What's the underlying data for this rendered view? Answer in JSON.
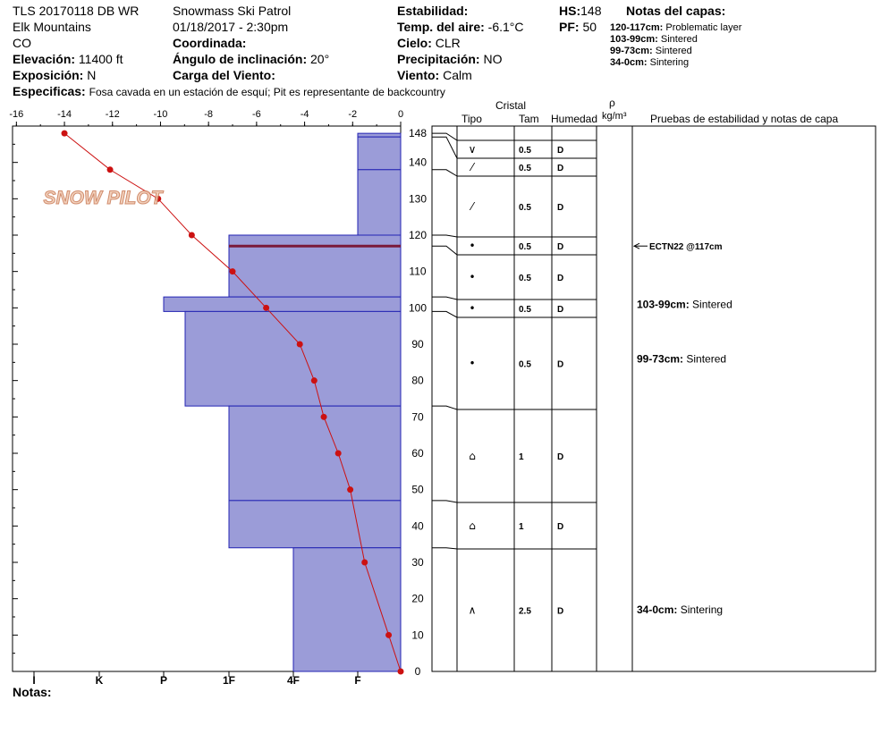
{
  "header": {
    "id": "TLS 20170118 DB WR",
    "range": "Elk Mountains",
    "state": "CO",
    "elevation_label": "Elevación:",
    "elevation_value": "11400 ft",
    "aspect_label": "Exposición:",
    "aspect_value": "N",
    "specifics_label": "Especificas:",
    "specifics_value": "Fosa cavada en un estación de esquí; Pit es representante de backcountry",
    "org": "Snowmass Ski Patrol",
    "datetime": "01/18/2017 - 2:30pm",
    "coord_label": "Coordinada:",
    "slope_label": "Ángulo de inclinación:",
    "slope_value": "20°",
    "wind_load_label": "Carga del Viento:",
    "stability_label": "Estabilidad:",
    "air_temp_label": "Temp. del aire:",
    "air_temp_value": "-6.1°C",
    "sky_label": "Cielo:",
    "sky_value": "CLR",
    "precip_label": "Precipitación:",
    "precip_value": "NO",
    "wind_label": "Viento:",
    "wind_value": "Calm",
    "hs_label": "HS:",
    "hs_value": "148",
    "pf_label": "PF:",
    "pf_value": "50",
    "layer_notes_title": "Notas del capas:",
    "layer_notes": [
      {
        "range": "120-117cm:",
        "text": "Problematic layer"
      },
      {
        "range": "103-99cm:",
        "text": "Sintered"
      },
      {
        "range": "99-73cm:",
        "text": "Sintered"
      },
      {
        "range": "34-0cm:",
        "text": "Sintering"
      }
    ],
    "notes_label": "Notas:"
  },
  "logo": {
    "text": "SNOW PILOT"
  },
  "table": {
    "crystal_header": "Cristal",
    "type_header": "Tipo",
    "size_header": "Tam",
    "moisture_header": "Humedad",
    "rho_header": "ρ",
    "density_header": "kg/m³",
    "tests_header": "Pruebas de estabilidad y notas de capa"
  },
  "chart_data": {
    "type": "snow_profile",
    "x_ticks": [
      "-16",
      "-14",
      "-12",
      "-10",
      "-8",
      "-6",
      "-4",
      "-2",
      "0"
    ],
    "x_range": [
      -16,
      0
    ],
    "y_range": [
      0,
      150
    ],
    "y_ticks": [
      "0",
      "10",
      "20",
      "30",
      "40",
      "50",
      "60",
      "70",
      "80",
      "90",
      "100",
      "110",
      "120",
      "130",
      "140",
      "148"
    ],
    "hardness_labels": [
      "I",
      "K",
      "P",
      "1F",
      "4F",
      "F"
    ],
    "temperature_series": [
      {
        "h": 148,
        "t": -14.0
      },
      {
        "h": 138,
        "t": -12.1
      },
      {
        "h": 130,
        "t": -10.1
      },
      {
        "h": 120,
        "t": -8.7
      },
      {
        "h": 110,
        "t": -7.0
      },
      {
        "h": 100,
        "t": -5.6
      },
      {
        "h": 90,
        "t": -4.2
      },
      {
        "h": 80,
        "t": -3.6
      },
      {
        "h": 70,
        "t": -3.2
      },
      {
        "h": 60,
        "t": -2.6
      },
      {
        "h": 50,
        "t": -2.1
      },
      {
        "h": 30,
        "t": -1.5
      },
      {
        "h": 10,
        "t": -0.5
      },
      {
        "h": 0,
        "t": 0.0
      }
    ],
    "hardness_layers": [
      {
        "top": 148,
        "bottom": 147,
        "hardness": "4F-"
      },
      {
        "top": 147,
        "bottom": 138,
        "hardness": "4F-"
      },
      {
        "top": 138,
        "bottom": 120,
        "hardness": "4F-"
      },
      {
        "top": 120,
        "bottom": 117,
        "hardness": "1F"
      },
      {
        "top": 117,
        "bottom": 103,
        "hardness": "1F"
      },
      {
        "top": 103,
        "bottom": 99,
        "hardness": "P+"
      },
      {
        "top": 99,
        "bottom": 73,
        "hardness": "P-"
      },
      {
        "top": 73,
        "bottom": 47,
        "hardness": "1F"
      },
      {
        "top": 47,
        "bottom": 34,
        "hardness": "1F"
      },
      {
        "top": 34,
        "bottom": 0,
        "hardness": "4F"
      }
    ],
    "layer_rows": [
      {
        "type": "∨",
        "size": "0.5",
        "moisture": "D"
      },
      {
        "type": "⁄",
        "size": "0.5",
        "moisture": "D"
      },
      {
        "type": "⁄",
        "size": "0.5",
        "moisture": "D"
      },
      {
        "type": "•",
        "size": "0.5",
        "moisture": "D"
      },
      {
        "type": "•",
        "size": "0.5",
        "moisture": "D"
      },
      {
        "type": "•",
        "size": "0.5",
        "moisture": "D"
      },
      {
        "type": "•",
        "size": "0.5",
        "moisture": "D"
      },
      {
        "type": "⌂",
        "size": "1",
        "moisture": "D"
      },
      {
        "type": "⌂",
        "size": "1",
        "moisture": "D"
      },
      {
        "type": "∧",
        "size": "2.5",
        "moisture": "D"
      }
    ],
    "stability_tests": [
      {
        "height": 117,
        "text": "ECTN22 @117cm"
      }
    ],
    "layer_comments": [
      {
        "height": 101,
        "range": "103-99cm:",
        "text": "Sintered"
      },
      {
        "height": 86,
        "range": "99-73cm:",
        "text": "Sintered"
      },
      {
        "height": 17,
        "range": "34-0cm:",
        "text": "Sintering"
      }
    ],
    "colors": {
      "fill": "#9b9cd8",
      "edge": "#2323b3",
      "temp": "#cc1111",
      "problem": "#7a1a3a"
    }
  }
}
